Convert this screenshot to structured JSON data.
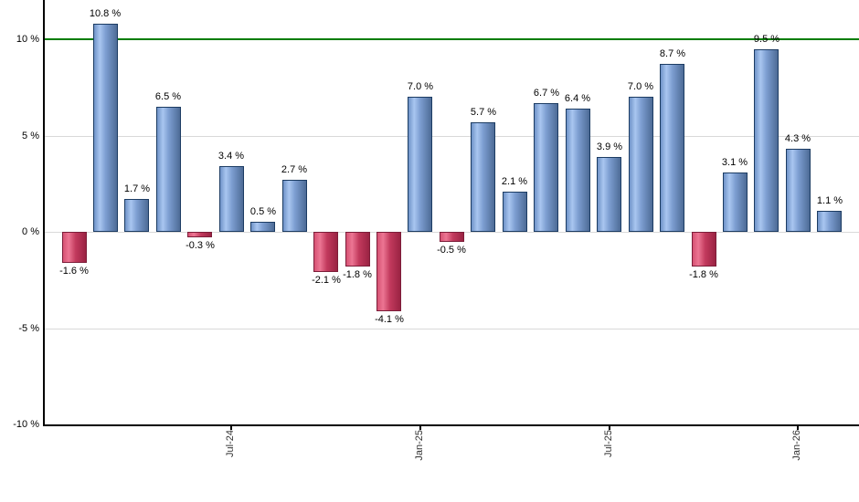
{
  "chart_data": {
    "type": "bar",
    "title": "",
    "xlabel": "",
    "ylabel": "",
    "unit": "%",
    "values": [
      -1.6,
      10.8,
      1.7,
      6.5,
      -0.3,
      3.4,
      0.5,
      2.7,
      -2.1,
      -1.8,
      -4.1,
      7.0,
      -0.5,
      5.7,
      2.1,
      6.7,
      6.4,
      3.9,
      7.0,
      8.7,
      -1.8,
      3.1,
      9.5,
      4.3,
      1.1
    ],
    "value_labels": [
      "-1.6 %",
      "10.8 %",
      "1.7 %",
      "6.5 %",
      "-0.3 %",
      "3.4 %",
      "0.5 %",
      "2.7 %",
      "-2.1 %",
      "-1.8 %",
      "-4.1 %",
      "7.0 %",
      "-0.5 %",
      "5.7 %",
      "2.1 %",
      "6.7 %",
      "6.4 %",
      "3.9 %",
      "7.0 %",
      "8.7 %",
      "-1.8 %",
      "3.1 %",
      "9.5 %",
      "4.3 %",
      "1.1 %"
    ],
    "x_ticks": [
      {
        "label": "Jul-24",
        "bar_index": 5
      },
      {
        "label": "Jan-25",
        "bar_index": 11
      },
      {
        "label": "Jul-25",
        "bar_index": 17
      },
      {
        "label": "Jan-26",
        "bar_index": 23
      }
    ],
    "y_ticks": [
      {
        "value": 10,
        "label": "10 %"
      },
      {
        "value": 5,
        "label": "5 %"
      },
      {
        "value": 0,
        "label": "0 %"
      },
      {
        "value": -5,
        "label": "-5 %"
      },
      {
        "value": -10,
        "label": "-10 %"
      }
    ],
    "ylim": [
      -10,
      12
    ],
    "grid": true,
    "legend": false,
    "reference_line": {
      "value": 10,
      "color": "#007c00"
    },
    "colors": {
      "positive_bar_light": "#a9c6f0",
      "positive_bar_dark": "#4d6b96",
      "positive_bar_border": "#1c3c63",
      "negative_bar_light": "#ec7593",
      "negative_bar_dark": "#9a2343",
      "negative_bar_border": "#7c1d39",
      "gridline": "#d9d9d9",
      "axis": "#000000",
      "value_label_text": "#000000",
      "tick_label_text": "#333333",
      "background": "#ffffff"
    }
  }
}
